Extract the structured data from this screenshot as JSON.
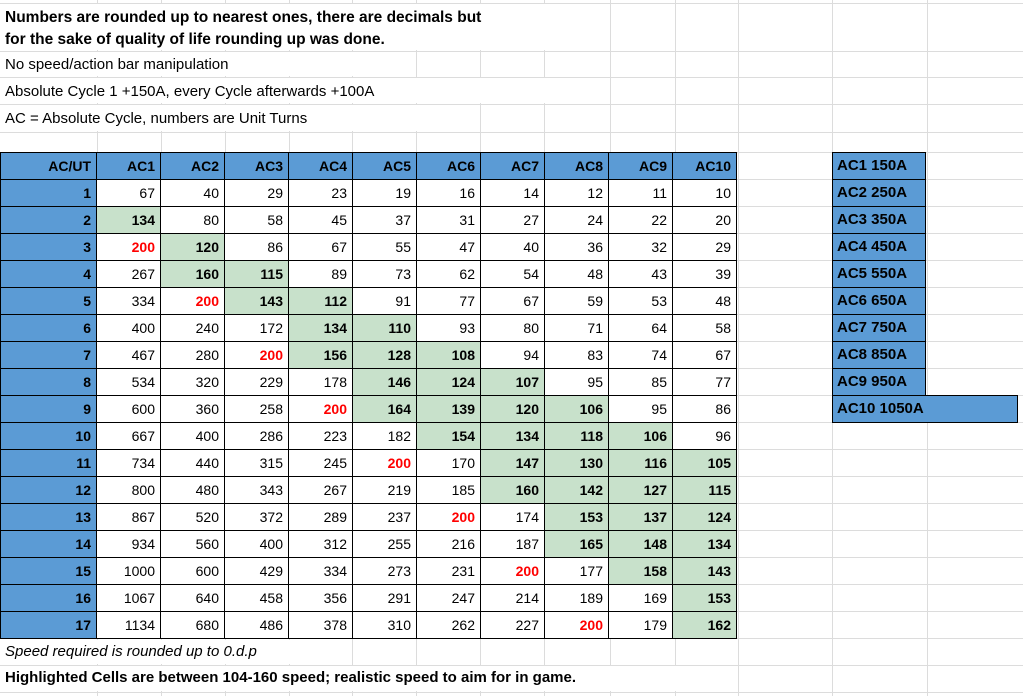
{
  "colors": {
    "header_blue": "#5b9bd5",
    "highlight_green": "#c8e1cb",
    "red_text": "#ff0000",
    "gridline_gray": "#dcdcdc"
  },
  "notes_top": {
    "rounding_line1": "Numbers are rounded up to nearest ones, there are decimals but",
    "rounding_line2": "for the sake of quality of life rounding up was done.",
    "no_manipulation": "No speed/action bar manipulation",
    "cycle_gain": "Absolute Cycle 1 +150A, every Cycle afterwards +100A",
    "abbreviation": "AC = Absolute Cycle, numbers are Unit Turns"
  },
  "table": {
    "corner_header": "AC/UT",
    "column_headers": [
      "AC1",
      "AC2",
      "AC3",
      "AC4",
      "AC5",
      "AC6",
      "AC7",
      "AC8",
      "AC9",
      "AC10"
    ],
    "style_legend": {
      "p": "plain",
      "g": "green-highlight-bold",
      "r": "red-bold"
    },
    "rows": [
      {
        "label": "1",
        "values": [
          "67",
          "40",
          "29",
          "23",
          "19",
          "16",
          "14",
          "12",
          "11",
          "10"
        ],
        "styles": "pppppppppp"
      },
      {
        "label": "2",
        "values": [
          "134",
          "80",
          "58",
          "45",
          "37",
          "31",
          "27",
          "24",
          "22",
          "20"
        ],
        "styles": "gppppppppp"
      },
      {
        "label": "3",
        "values": [
          "200",
          "120",
          "86",
          "67",
          "55",
          "47",
          "40",
          "36",
          "32",
          "29"
        ],
        "styles": "rgpppppppp"
      },
      {
        "label": "4",
        "values": [
          "267",
          "160",
          "115",
          "89",
          "73",
          "62",
          "54",
          "48",
          "43",
          "39"
        ],
        "styles": "pggppppppp"
      },
      {
        "label": "5",
        "values": [
          "334",
          "200",
          "143",
          "112",
          "91",
          "77",
          "67",
          "59",
          "53",
          "48"
        ],
        "styles": "prggpppppp"
      },
      {
        "label": "6",
        "values": [
          "400",
          "240",
          "172",
          "134",
          "110",
          "93",
          "80",
          "71",
          "64",
          "58"
        ],
        "styles": "pppggppppp"
      },
      {
        "label": "7",
        "values": [
          "467",
          "280",
          "200",
          "156",
          "128",
          "108",
          "94",
          "83",
          "74",
          "67"
        ],
        "styles": "pprgggpppp"
      },
      {
        "label": "8",
        "values": [
          "534",
          "320",
          "229",
          "178",
          "146",
          "124",
          "107",
          "95",
          "85",
          "77"
        ],
        "styles": "ppppgggppp"
      },
      {
        "label": "9",
        "values": [
          "600",
          "360",
          "258",
          "200",
          "164",
          "139",
          "120",
          "106",
          "95",
          "86"
        ],
        "styles": "ppprggggpp"
      },
      {
        "label": "10",
        "values": [
          "667",
          "400",
          "286",
          "223",
          "182",
          "154",
          "134",
          "118",
          "106",
          "96"
        ],
        "styles": "pppppggggp"
      },
      {
        "label": "11",
        "values": [
          "734",
          "440",
          "315",
          "245",
          "200",
          "170",
          "147",
          "130",
          "116",
          "105"
        ],
        "styles": "pppprpgggg"
      },
      {
        "label": "12",
        "values": [
          "800",
          "480",
          "343",
          "267",
          "219",
          "185",
          "160",
          "142",
          "127",
          "115"
        ],
        "styles": "ppppppgggg"
      },
      {
        "label": "13",
        "values": [
          "867",
          "520",
          "372",
          "289",
          "237",
          "200",
          "174",
          "153",
          "137",
          "124"
        ],
        "styles": "ppppprpggg"
      },
      {
        "label": "14",
        "values": [
          "934",
          "560",
          "400",
          "312",
          "255",
          "216",
          "187",
          "165",
          "148",
          "134"
        ],
        "styles": "pppppppggg"
      },
      {
        "label": "15",
        "values": [
          "1000",
          "600",
          "429",
          "334",
          "273",
          "231",
          "200",
          "177",
          "158",
          "143"
        ],
        "styles": "pppppprpgg"
      },
      {
        "label": "16",
        "values": [
          "1067",
          "640",
          "458",
          "356",
          "291",
          "247",
          "214",
          "189",
          "169",
          "153"
        ],
        "styles": "pppppppppg"
      },
      {
        "label": "17",
        "values": [
          "1134",
          "680",
          "486",
          "378",
          "310",
          "262",
          "227",
          "200",
          "179",
          "162"
        ],
        "styles": "ppppppprpg"
      }
    ]
  },
  "legend": {
    "items": [
      "AC1 150A",
      "AC2 250A",
      "AC3 350A",
      "AC4 450A",
      "AC5 550A",
      "AC6 650A",
      "AC7 750A",
      "AC8 850A",
      "AC9 950A",
      "AC10 1050A"
    ]
  },
  "notes_bottom": {
    "precision": "Speed required is rounded up to 0.d.p",
    "highlight_meaning": "Highlighted Cells are between 104-160 speed; realistic speed to aim for in game."
  }
}
